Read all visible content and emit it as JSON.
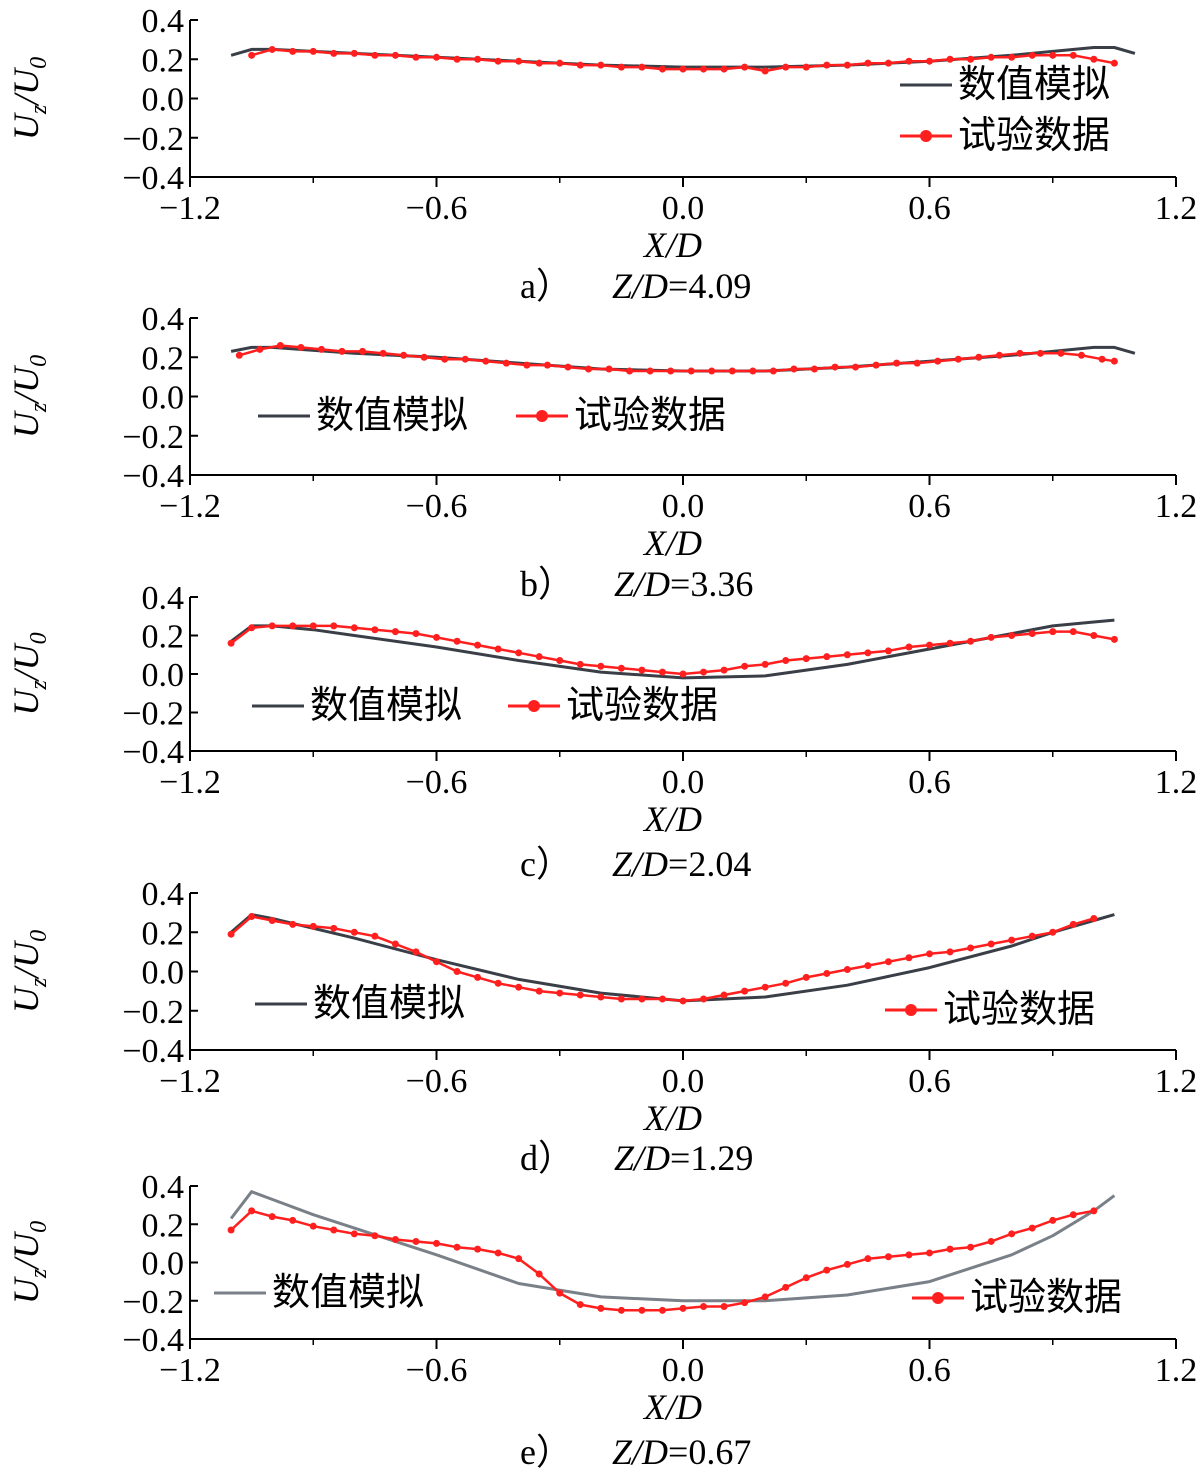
{
  "chart_data": [
    {
      "type": "line",
      "panel_label": "a）",
      "caption_var": "Z/D",
      "caption_value": "=4.09",
      "xlabel": "X/D",
      "ylabel": "U_z/U_0",
      "xlim": [
        -1.2,
        1.2
      ],
      "ylim": [
        -0.4,
        0.4
      ],
      "xticks": [
        "−1.2",
        "−0.6",
        "0.0",
        "0.6",
        "1.2"
      ],
      "yticks": [
        "0.4",
        "0.2",
        "0.0",
        "−0.2",
        "−0.4"
      ],
      "legend_position": "bottom-right-stacked",
      "series": [
        {
          "name": "数值模拟",
          "color": "#3a3f47",
          "x": [
            -1.1,
            -1.05,
            -1.0,
            -0.8,
            -0.6,
            -0.4,
            -0.2,
            0.0,
            0.2,
            0.4,
            0.6,
            0.8,
            0.9,
            1.0,
            1.05,
            1.1
          ],
          "y": [
            0.22,
            0.25,
            0.25,
            0.23,
            0.21,
            0.19,
            0.17,
            0.16,
            0.16,
            0.17,
            0.19,
            0.22,
            0.24,
            0.26,
            0.26,
            0.23
          ]
        },
        {
          "name": "试验数据",
          "color": "#ff1f1f",
          "x": [
            -1.05,
            -1.0,
            -0.95,
            -0.9,
            -0.85,
            -0.8,
            -0.75,
            -0.7,
            -0.65,
            -0.6,
            -0.55,
            -0.5,
            -0.45,
            -0.4,
            -0.35,
            -0.3,
            -0.25,
            -0.2,
            -0.15,
            -0.1,
            -0.05,
            0.0,
            0.05,
            0.1,
            0.15,
            0.2,
            0.25,
            0.3,
            0.35,
            0.4,
            0.45,
            0.5,
            0.55,
            0.6,
            0.65,
            0.7,
            0.75,
            0.8,
            0.85,
            0.9,
            0.95,
            1.0,
            1.05
          ],
          "y": [
            0.22,
            0.25,
            0.24,
            0.24,
            0.23,
            0.23,
            0.22,
            0.22,
            0.21,
            0.21,
            0.2,
            0.2,
            0.19,
            0.19,
            0.18,
            0.18,
            0.17,
            0.17,
            0.16,
            0.16,
            0.15,
            0.15,
            0.15,
            0.15,
            0.16,
            0.14,
            0.16,
            0.16,
            0.17,
            0.17,
            0.18,
            0.18,
            0.19,
            0.19,
            0.2,
            0.2,
            0.21,
            0.21,
            0.22,
            0.22,
            0.22,
            0.2,
            0.18
          ]
        }
      ]
    },
    {
      "type": "line",
      "panel_label": "b）",
      "caption_var": "Z/D",
      "caption_value": "=3.36",
      "xlabel": "X/D",
      "ylabel": "U_z/U_0",
      "xlim": [
        -1.2,
        1.2
      ],
      "ylim": [
        -0.4,
        0.4
      ],
      "xticks": [
        "−1.2",
        "−0.6",
        "0.0",
        "0.6",
        "1.2"
      ],
      "yticks": [
        "0.4",
        "0.2",
        "0.0",
        "−0.2",
        "−0.4"
      ],
      "legend_position": "lower-left-row",
      "series": [
        {
          "name": "数值模拟",
          "color": "#3a3f47",
          "x": [
            -1.1,
            -1.05,
            -1.0,
            -0.8,
            -0.6,
            -0.4,
            -0.2,
            0.0,
            0.2,
            0.4,
            0.6,
            0.8,
            0.9,
            1.0,
            1.05,
            1.1
          ],
          "y": [
            0.23,
            0.25,
            0.25,
            0.22,
            0.2,
            0.17,
            0.14,
            0.13,
            0.13,
            0.15,
            0.18,
            0.21,
            0.23,
            0.25,
            0.25,
            0.22
          ]
        },
        {
          "name": "试验数据",
          "color": "#ff1f1f",
          "x": [
            -1.08,
            -1.03,
            -0.98,
            -0.93,
            -0.88,
            -0.83,
            -0.78,
            -0.73,
            -0.68,
            -0.63,
            -0.58,
            -0.53,
            -0.48,
            -0.43,
            -0.38,
            -0.33,
            -0.28,
            -0.23,
            -0.18,
            -0.13,
            -0.08,
            -0.03,
            0.02,
            0.07,
            0.12,
            0.17,
            0.22,
            0.27,
            0.32,
            0.37,
            0.42,
            0.47,
            0.52,
            0.57,
            0.62,
            0.67,
            0.72,
            0.77,
            0.82,
            0.87,
            0.92,
            0.97,
            1.02,
            1.05
          ],
          "y": [
            0.21,
            0.24,
            0.26,
            0.25,
            0.24,
            0.23,
            0.23,
            0.22,
            0.21,
            0.2,
            0.19,
            0.19,
            0.18,
            0.17,
            0.16,
            0.16,
            0.15,
            0.14,
            0.14,
            0.13,
            0.13,
            0.13,
            0.13,
            0.13,
            0.13,
            0.13,
            0.13,
            0.14,
            0.14,
            0.15,
            0.15,
            0.16,
            0.17,
            0.17,
            0.18,
            0.19,
            0.2,
            0.21,
            0.22,
            0.22,
            0.22,
            0.21,
            0.19,
            0.18
          ]
        }
      ]
    },
    {
      "type": "line",
      "panel_label": "c）",
      "caption_var": "Z/D",
      "caption_value": "=2.04",
      "xlabel": "X/D",
      "ylabel": "U_z/U_0",
      "xlim": [
        -1.2,
        1.2
      ],
      "ylim": [
        -0.4,
        0.4
      ],
      "xticks": [
        "−1.2",
        "−0.6",
        "0.0",
        "0.6",
        "1.2"
      ],
      "yticks": [
        "0.4",
        "0.2",
        "0.0",
        "−0.2",
        "−0.4"
      ],
      "legend_position": "lower-left-row",
      "series": [
        {
          "name": "数值模拟",
          "color": "#3a3f47",
          "x": [
            -1.1,
            -1.05,
            -1.0,
            -0.9,
            -0.8,
            -0.6,
            -0.4,
            -0.2,
            0.0,
            0.2,
            0.4,
            0.6,
            0.8,
            0.9,
            1.0,
            1.05
          ],
          "y": [
            0.17,
            0.25,
            0.25,
            0.23,
            0.2,
            0.14,
            0.07,
            0.01,
            -0.02,
            -0.01,
            0.05,
            0.13,
            0.21,
            0.25,
            0.27,
            0.28
          ]
        },
        {
          "name": "试验数据",
          "color": "#ff1f1f",
          "x": [
            -1.1,
            -1.05,
            -1.0,
            -0.95,
            -0.9,
            -0.85,
            -0.8,
            -0.75,
            -0.7,
            -0.65,
            -0.6,
            -0.55,
            -0.5,
            -0.45,
            -0.4,
            -0.35,
            -0.3,
            -0.25,
            -0.2,
            -0.15,
            -0.1,
            -0.05,
            0.0,
            0.05,
            0.1,
            0.15,
            0.2,
            0.25,
            0.3,
            0.35,
            0.4,
            0.45,
            0.5,
            0.55,
            0.6,
            0.65,
            0.7,
            0.75,
            0.8,
            0.85,
            0.9,
            0.95,
            1.0,
            1.05
          ],
          "y": [
            0.16,
            0.24,
            0.25,
            0.25,
            0.25,
            0.25,
            0.24,
            0.23,
            0.22,
            0.21,
            0.19,
            0.17,
            0.15,
            0.13,
            0.11,
            0.09,
            0.07,
            0.05,
            0.04,
            0.03,
            0.02,
            0.01,
            0.0,
            0.01,
            0.02,
            0.04,
            0.05,
            0.07,
            0.08,
            0.09,
            0.1,
            0.11,
            0.12,
            0.14,
            0.15,
            0.16,
            0.17,
            0.19,
            0.2,
            0.21,
            0.22,
            0.22,
            0.2,
            0.18
          ]
        }
      ]
    },
    {
      "type": "line",
      "panel_label": "d）",
      "caption_var": "Z/D",
      "caption_value": "=1.29",
      "xlabel": "X/D",
      "ylabel": "U_z/U_0",
      "xlim": [
        -1.2,
        1.2
      ],
      "ylim": [
        -0.4,
        0.4
      ],
      "xticks": [
        "−1.2",
        "−0.6",
        "0.0",
        "0.6",
        "1.2"
      ],
      "yticks": [
        "0.4",
        "0.2",
        "0.0",
        "−0.2",
        "−0.4"
      ],
      "legend_position": "split",
      "series": [
        {
          "name": "数值模拟",
          "color": "#3a3f47",
          "x": [
            -1.1,
            -1.05,
            -1.0,
            -0.9,
            -0.8,
            -0.6,
            -0.4,
            -0.2,
            0.0,
            0.2,
            0.4,
            0.6,
            0.8,
            0.9,
            1.0,
            1.05
          ],
          "y": [
            0.2,
            0.29,
            0.27,
            0.22,
            0.17,
            0.06,
            -0.04,
            -0.11,
            -0.15,
            -0.13,
            -0.07,
            0.02,
            0.13,
            0.2,
            0.26,
            0.29
          ]
        },
        {
          "name": "试验数据",
          "color": "#ff1f1f",
          "x": [
            -1.1,
            -1.05,
            -1.0,
            -0.95,
            -0.9,
            -0.85,
            -0.8,
            -0.75,
            -0.7,
            -0.65,
            -0.6,
            -0.55,
            -0.5,
            -0.45,
            -0.4,
            -0.35,
            -0.3,
            -0.25,
            -0.2,
            -0.15,
            -0.1,
            -0.05,
            0.0,
            0.05,
            0.1,
            0.15,
            0.2,
            0.25,
            0.3,
            0.35,
            0.4,
            0.45,
            0.5,
            0.55,
            0.6,
            0.65,
            0.7,
            0.75,
            0.8,
            0.85,
            0.9,
            0.95,
            1.0
          ],
          "y": [
            0.19,
            0.28,
            0.26,
            0.24,
            0.23,
            0.22,
            0.2,
            0.18,
            0.14,
            0.1,
            0.05,
            0.0,
            -0.03,
            -0.06,
            -0.08,
            -0.1,
            -0.11,
            -0.12,
            -0.13,
            -0.14,
            -0.14,
            -0.14,
            -0.15,
            -0.14,
            -0.12,
            -0.1,
            -0.08,
            -0.06,
            -0.03,
            -0.01,
            0.01,
            0.03,
            0.05,
            0.07,
            0.09,
            0.1,
            0.12,
            0.14,
            0.16,
            0.18,
            0.2,
            0.24,
            0.27
          ]
        }
      ]
    },
    {
      "type": "line",
      "panel_label": "e）",
      "caption_var": "Z/D",
      "caption_value": "=0.67",
      "xlabel": "X/D",
      "ylabel": "U_z/U_0",
      "xlim": [
        -1.2,
        1.2
      ],
      "ylim": [
        -0.4,
        0.4
      ],
      "xticks": [
        "−1.2",
        "−0.6",
        "0.0",
        "0.6",
        "1.2"
      ],
      "yticks": [
        "0.4",
        "0.2",
        "0.0",
        "−0.2",
        "−0.4"
      ],
      "legend_position": "split",
      "series": [
        {
          "name": "数值模拟",
          "color": "#7a8088",
          "x": [
            -1.1,
            -1.05,
            -1.0,
            -0.9,
            -0.8,
            -0.6,
            -0.4,
            -0.2,
            0.0,
            0.2,
            0.4,
            0.6,
            0.8,
            0.9,
            1.0,
            1.05
          ],
          "y": [
            0.23,
            0.37,
            0.33,
            0.25,
            0.18,
            0.04,
            -0.11,
            -0.18,
            -0.2,
            -0.2,
            -0.17,
            -0.1,
            0.04,
            0.14,
            0.27,
            0.35
          ]
        },
        {
          "name": "试验数据",
          "color": "#ff1f1f",
          "x": [
            -1.1,
            -1.05,
            -1.0,
            -0.95,
            -0.9,
            -0.85,
            -0.8,
            -0.75,
            -0.7,
            -0.65,
            -0.6,
            -0.55,
            -0.5,
            -0.45,
            -0.4,
            -0.35,
            -0.3,
            -0.25,
            -0.2,
            -0.15,
            -0.1,
            -0.05,
            0.0,
            0.05,
            0.1,
            0.15,
            0.2,
            0.25,
            0.3,
            0.35,
            0.4,
            0.45,
            0.5,
            0.55,
            0.6,
            0.65,
            0.7,
            0.75,
            0.8,
            0.85,
            0.9,
            0.95,
            1.0
          ],
          "y": [
            0.17,
            0.27,
            0.24,
            0.22,
            0.19,
            0.17,
            0.15,
            0.14,
            0.12,
            0.11,
            0.1,
            0.08,
            0.07,
            0.05,
            0.02,
            -0.06,
            -0.16,
            -0.22,
            -0.24,
            -0.25,
            -0.25,
            -0.25,
            -0.24,
            -0.23,
            -0.23,
            -0.21,
            -0.18,
            -0.13,
            -0.08,
            -0.04,
            -0.01,
            0.02,
            0.03,
            0.04,
            0.05,
            0.07,
            0.08,
            0.11,
            0.15,
            0.18,
            0.22,
            0.25,
            0.27
          ]
        }
      ]
    }
  ]
}
